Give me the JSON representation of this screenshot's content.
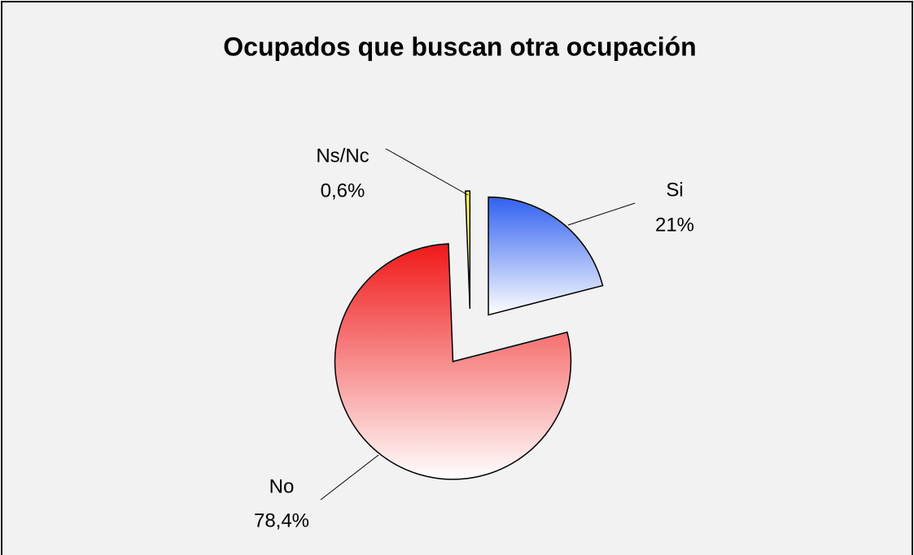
{
  "chart_data": {
    "type": "pie",
    "title": "Ocupados que buscan otra ocupación",
    "categories": [
      "Si",
      "No",
      "Ns/Nc"
    ],
    "values": [
      21,
      78.4,
      0.6
    ],
    "value_labels": [
      "21%",
      "78,4%",
      "0,6%"
    ],
    "colors": [
      "#3060f0",
      "#f01818",
      "#f8f040"
    ],
    "exploded": true
  }
}
